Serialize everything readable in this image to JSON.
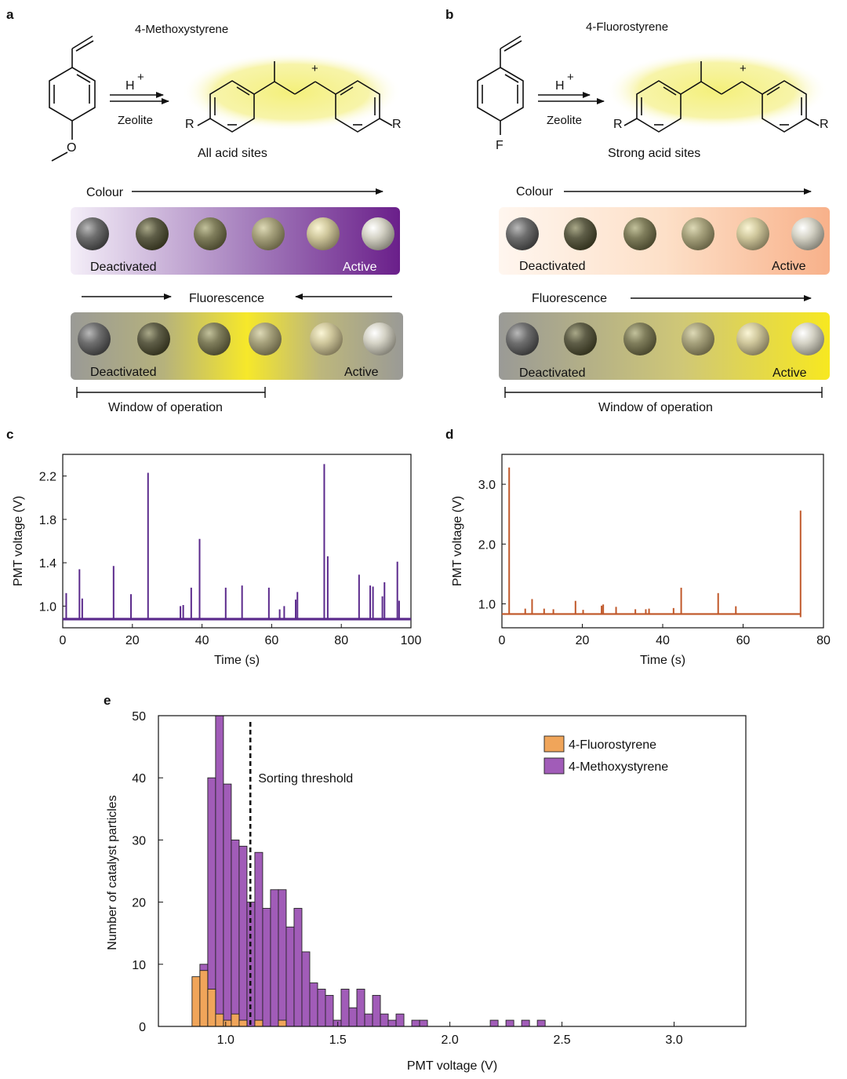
{
  "panels": {
    "a": {
      "label": "a",
      "title": "4-Methoxystyrene",
      "reagent": "H",
      "reagent_sup": "+",
      "catalyst": "Zeolite",
      "r_label": "R",
      "plus": "+",
      "site_text": "All acid sites",
      "substituent": "O",
      "colour_label": "Colour",
      "fluor_label": "Fluorescence",
      "deactivated": "Deactivated",
      "active": "Active",
      "window_label": "Window of operation"
    },
    "b": {
      "label": "b",
      "title": "4-Fluorostyrene",
      "reagent": "H",
      "reagent_sup": "+",
      "catalyst": "Zeolite",
      "r_label": "R",
      "plus": "+",
      "site_text": "Strong acid sites",
      "substituent": "F",
      "colour_label": "Colour",
      "fluor_label": "Fluorescence",
      "deactivated": "Deactivated",
      "active": "Active",
      "window_label": "Window of operation"
    }
  },
  "colors": {
    "purple": "#5b2a8c",
    "purple_bar": "#a15cb8",
    "orange_line": "#c0582a",
    "orange_bar": "#f0a55a",
    "highlight": "#f4f07a",
    "gray_bar": "#9a9a96",
    "yellow": "#f5e62a",
    "peach": "#f7b48c"
  },
  "chart_data": [
    {
      "id": "c",
      "type": "line",
      "panel_label": "c",
      "xlabel": "Time (s)",
      "ylabel": "PMT voltage (V)",
      "xlim": [
        0,
        100
      ],
      "ylim": [
        0.8,
        2.4
      ],
      "xticks": [
        0,
        20,
        40,
        60,
        80,
        100
      ],
      "yticks": [
        1.0,
        1.4,
        1.8,
        2.2
      ],
      "ytick_labels": [
        "1.0",
        "1.4",
        "1.8",
        "2.2"
      ],
      "baseline": 0.88,
      "peaks": [
        [
          1,
          1.12
        ],
        [
          4.8,
          1.34
        ],
        [
          5.6,
          1.07
        ],
        [
          14.6,
          1.37
        ],
        [
          19.6,
          1.11
        ],
        [
          24.5,
          2.23
        ],
        [
          33.8,
          1.0
        ],
        [
          34.6,
          1.01
        ],
        [
          36.9,
          1.17
        ],
        [
          39.3,
          1.62
        ],
        [
          46.8,
          1.17
        ],
        [
          51.5,
          1.19
        ],
        [
          59.2,
          1.17
        ],
        [
          62.3,
          0.97
        ],
        [
          63.6,
          1.0
        ],
        [
          66.9,
          1.06
        ],
        [
          67.4,
          1.13
        ],
        [
          75.1,
          2.31
        ],
        [
          76.1,
          1.46
        ],
        [
          85.1,
          1.29
        ],
        [
          88.3,
          1.19
        ],
        [
          89.1,
          1.18
        ],
        [
          91.8,
          1.09
        ],
        [
          92.4,
          1.22
        ],
        [
          96.1,
          1.41
        ],
        [
          96.6,
          1.05
        ]
      ],
      "color": "#5b2a8c"
    },
    {
      "id": "d",
      "type": "line",
      "panel_label": "d",
      "xlabel": "Time (s)",
      "ylabel": "PMT voltage (V)",
      "xlim": [
        0,
        80
      ],
      "ylim": [
        0.6,
        3.5
      ],
      "xticks": [
        0,
        20,
        40,
        60,
        80
      ],
      "yticks": [
        1.0,
        2.0,
        3.0
      ],
      "ytick_labels": [
        "1.0",
        "2.0",
        "3.0"
      ],
      "baseline": 0.83,
      "end_time": 74.3,
      "peaks": [
        [
          1.8,
          3.28
        ],
        [
          5.8,
          0.92
        ],
        [
          7.5,
          1.08
        ],
        [
          10.5,
          0.92
        ],
        [
          12.8,
          0.91
        ],
        [
          18.3,
          1.05
        ],
        [
          20.2,
          0.9
        ],
        [
          24.8,
          0.97
        ],
        [
          25.2,
          0.99
        ],
        [
          28.4,
          0.95
        ],
        [
          33.2,
          0.91
        ],
        [
          35.8,
          0.91
        ],
        [
          36.6,
          0.92
        ],
        [
          42.7,
          0.93
        ],
        [
          44.6,
          1.27
        ],
        [
          53.8,
          1.18
        ],
        [
          58.2,
          0.96
        ],
        [
          74.3,
          2.56
        ]
      ],
      "color": "#c0582a"
    },
    {
      "id": "e",
      "type": "bar",
      "panel_label": "e",
      "xlabel": "PMT voltage (V)",
      "ylabel": "Number of catalyst particles",
      "xlim": [
        0.7,
        3.32
      ],
      "ylim": [
        0,
        50
      ],
      "xticks": [
        1.0,
        1.5,
        2.0,
        2.5,
        3.0
      ],
      "xtick_labels": [
        "1.0",
        "1.5",
        "2.0",
        "2.5",
        "3.0"
      ],
      "yticks": [
        0,
        10,
        20,
        30,
        40,
        50
      ],
      "bin_start": 0.85,
      "bin_width": 0.035,
      "threshold": 1.11,
      "threshold_label": "Sorting threshold",
      "legend_position": "top-right",
      "series": [
        {
          "name": "4-Fluorostyrene",
          "color": "#f0a55a",
          "counts": [
            8,
            9,
            6,
            2,
            1,
            2,
            1,
            0,
            1,
            0,
            0,
            1,
            0,
            0,
            0,
            0,
            0,
            0,
            0,
            0,
            0,
            0,
            0,
            0,
            0,
            0,
            0,
            0,
            0,
            0,
            0,
            0,
            0,
            0,
            0,
            0,
            0,
            0,
            0,
            0,
            0,
            0,
            0,
            0,
            0,
            0,
            0,
            0,
            0,
            0,
            0,
            0,
            0,
            0,
            0,
            0,
            0,
            0,
            0,
            0,
            0,
            0,
            0,
            0,
            0,
            0,
            0,
            0,
            0,
            0,
            0,
            0
          ]
        },
        {
          "name": "4-Methoxystyrene",
          "color": "#a15cb8",
          "counts": [
            0,
            10,
            40,
            50,
            39,
            30,
            29,
            20,
            28,
            19,
            22,
            22,
            16,
            19,
            12,
            7,
            6,
            5,
            1,
            6,
            3,
            6,
            2,
            5,
            2,
            1,
            2,
            0,
            1,
            1,
            0,
            0,
            0,
            0,
            0,
            0,
            0,
            0,
            1,
            0,
            1,
            0,
            1,
            0,
            1,
            0,
            0,
            0,
            0,
            0,
            0,
            0,
            0,
            0,
            0,
            0,
            0,
            0,
            0,
            0,
            0,
            0,
            0,
            0,
            0,
            0,
            0,
            0,
            0,
            0,
            0,
            0
          ]
        }
      ]
    }
  ]
}
